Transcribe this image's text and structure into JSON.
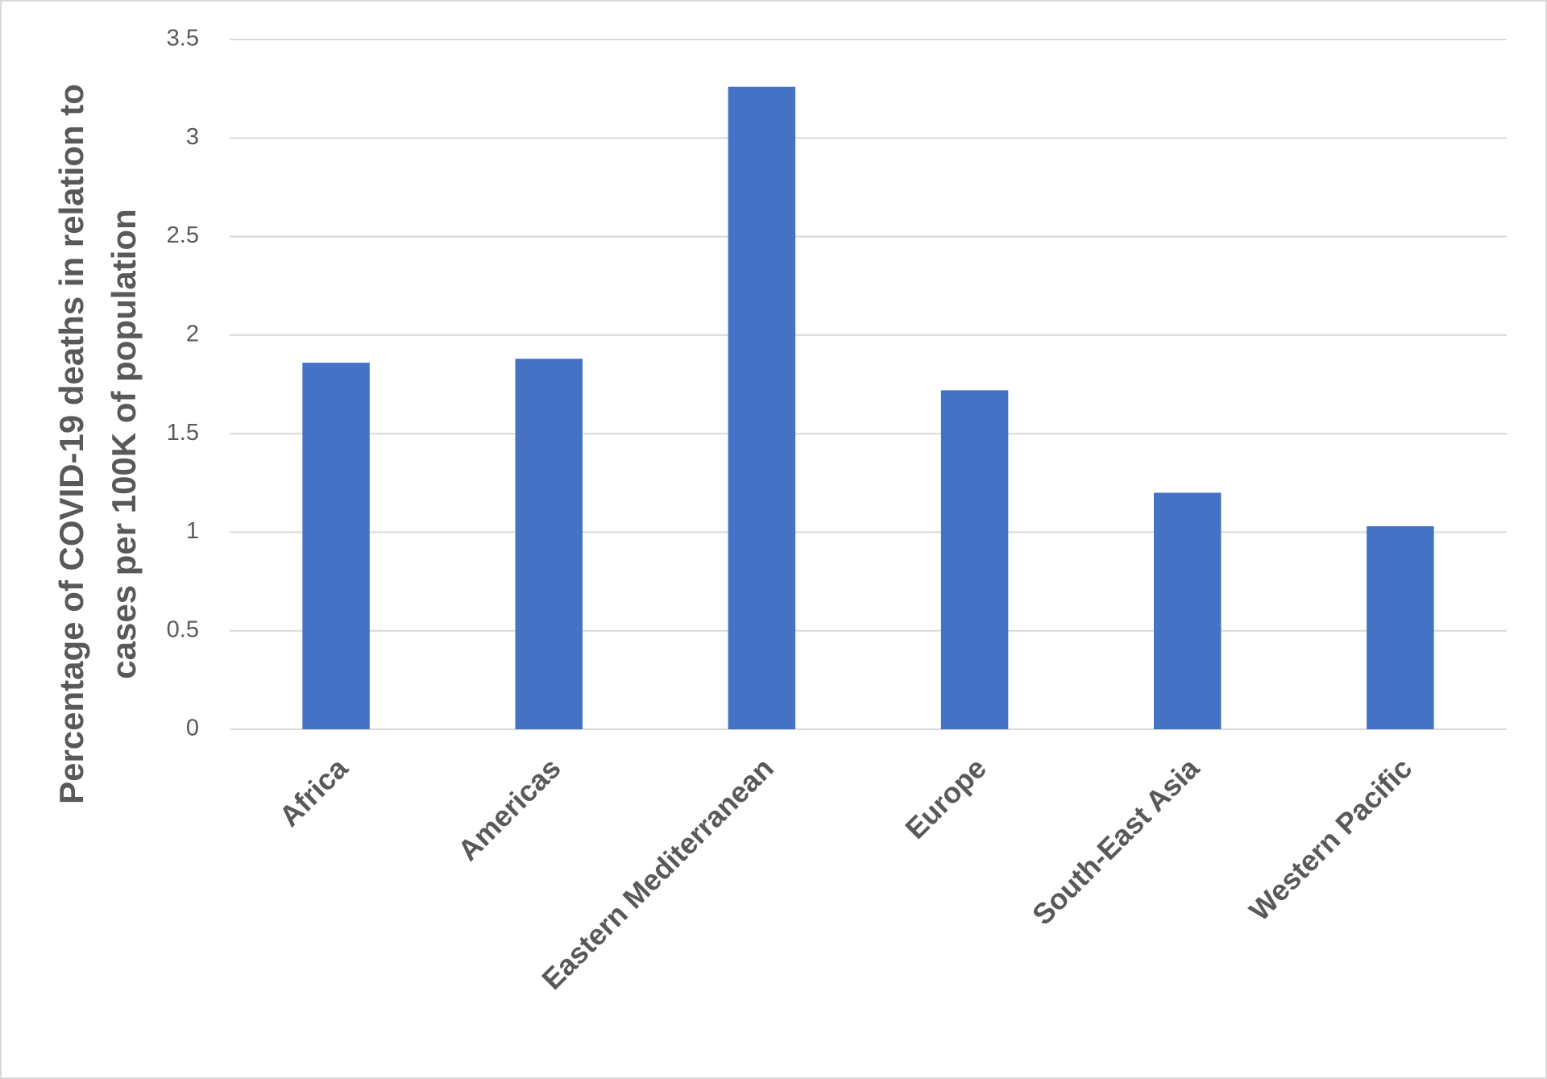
{
  "chart_data": {
    "type": "bar",
    "ylabel": [
      "Percentage of COVID-19 deaths in relation to",
      "cases per 100K of population"
    ],
    "categories": [
      "Africa",
      "Americas",
      "Eastern Mediterranean",
      "Europe",
      "South-East Asia",
      "Western Pacific"
    ],
    "values": [
      1.86,
      1.88,
      3.26,
      1.72,
      1.2,
      1.03
    ],
    "color": "#4472c4",
    "ylim": [
      0,
      3.5
    ],
    "yticks": [
      0,
      0.5,
      1,
      1.5,
      2,
      2.5,
      3,
      3.5
    ],
    "grid": true
  }
}
